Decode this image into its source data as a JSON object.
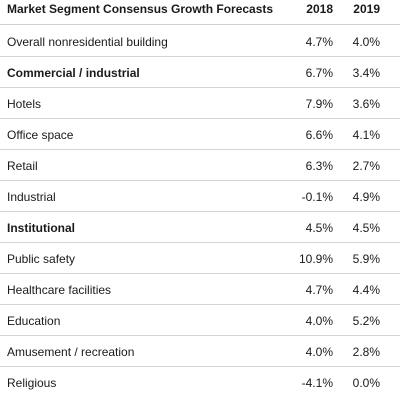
{
  "header": {
    "segment_label": "Market Segment Consensus Growth Forecasts",
    "year_1": "2018",
    "year_2": "2019"
  },
  "rows": [
    {
      "label": "Overall nonresidential building",
      "v2018": "4.7%",
      "v2019": "4.0%",
      "bold": false
    },
    {
      "label": "Commercial  / industrial",
      "v2018": "6.7%",
      "v2019": "3.4%",
      "bold": true
    },
    {
      "label": "Hotels",
      "v2018": "7.9%",
      "v2019": "3.6%",
      "bold": false
    },
    {
      "label": "Office space",
      "v2018": "6.6%",
      "v2019": "4.1%",
      "bold": false
    },
    {
      "label": "Retail",
      "v2018": "6.3%",
      "v2019": "2.7%",
      "bold": false
    },
    {
      "label": "Industrial",
      "v2018": "-0.1%",
      "v2019": "4.9%",
      "bold": false
    },
    {
      "label": "Institutional",
      "v2018": "4.5%",
      "v2019": "4.5%",
      "bold": true
    },
    {
      "label": "Public safety",
      "v2018": "10.9%",
      "v2019": "5.9%",
      "bold": false
    },
    {
      "label": "Healthcare facilities",
      "v2018": "4.7%",
      "v2019": "4.4%",
      "bold": false
    },
    {
      "label": "Education",
      "v2018": "4.0%",
      "v2019": "5.2%",
      "bold": false
    },
    {
      "label": "Amusement / recreation",
      "v2018": "4.0%",
      "v2019": "2.8%",
      "bold": false
    },
    {
      "label": "Religious",
      "v2018": "-4.1%",
      "v2019": "0.0%",
      "bold": false
    }
  ]
}
